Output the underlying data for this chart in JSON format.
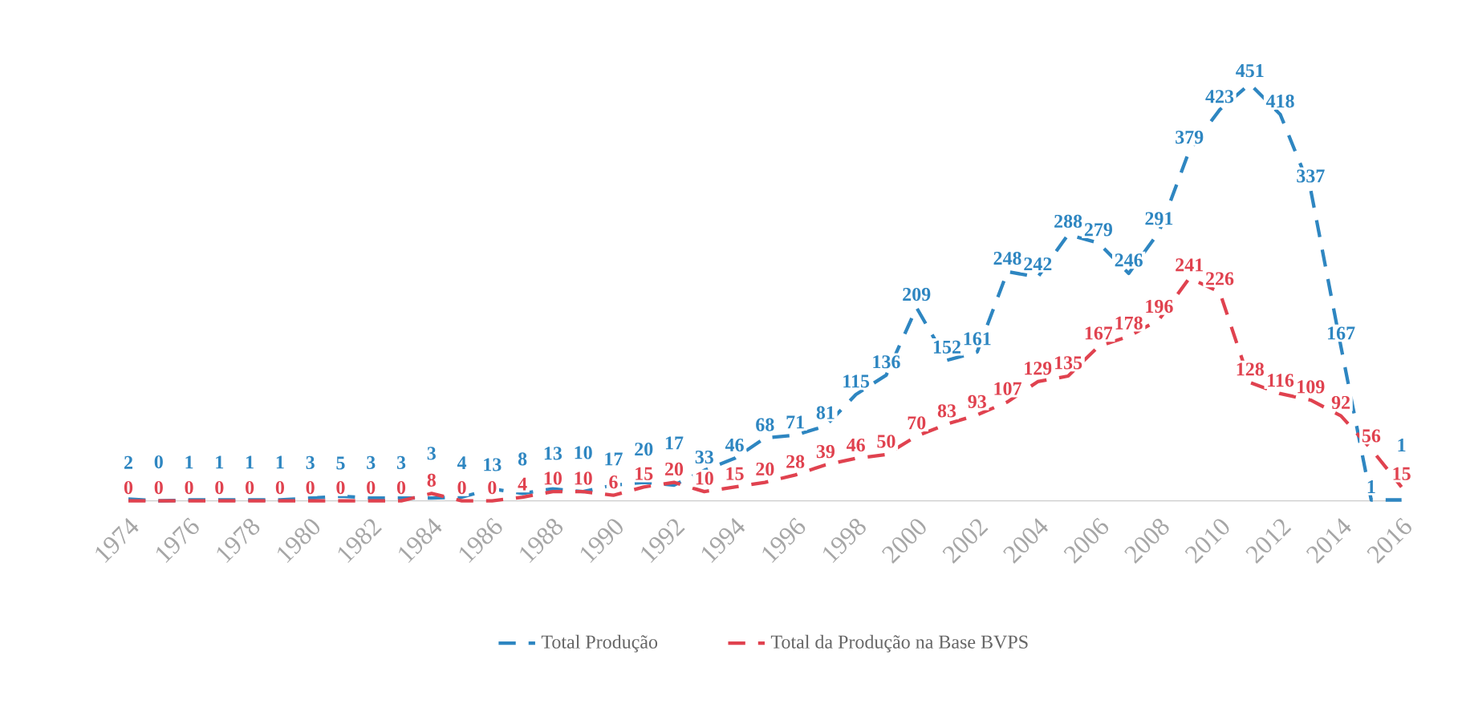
{
  "chart_data": {
    "type": "line",
    "x": [
      1974,
      1975,
      1976,
      1977,
      1978,
      1979,
      1980,
      1981,
      1982,
      1983,
      1984,
      1985,
      1986,
      1987,
      1988,
      1989,
      1990,
      1991,
      1992,
      1993,
      1994,
      1995,
      1996,
      1997,
      1998,
      1999,
      2000,
      2001,
      2002,
      2003,
      2004,
      2005,
      2006,
      2007,
      2008,
      2009,
      2010,
      2011,
      2012,
      2013,
      2014,
      2015,
      2016
    ],
    "series": [
      {
        "name": "Total Produção",
        "color": "#2e86c1",
        "values": [
          2,
          0,
          1,
          1,
          1,
          1,
          3,
          5,
          3,
          3,
          3,
          4,
          13,
          8,
          13,
          10,
          17,
          20,
          17,
          33,
          46,
          68,
          71,
          81,
          115,
          136,
          209,
          152,
          161,
          248,
          242,
          288,
          279,
          246,
          291,
          379,
          423,
          451,
          418,
          337,
          167,
          1,
          1
        ]
      },
      {
        "name": "Total da Produção na Base BVPS",
        "color": "#e0424f",
        "values": [
          0,
          0,
          0,
          0,
          0,
          0,
          0,
          0,
          0,
          0,
          8,
          0,
          0,
          4,
          10,
          10,
          6,
          15,
          20,
          10,
          15,
          20,
          28,
          39,
          46,
          50,
          70,
          83,
          93,
          107,
          129,
          135,
          167,
          178,
          196,
          241,
          226,
          128,
          116,
          109,
          92,
          56,
          15
        ]
      }
    ],
    "xlim": [
      1974,
      2016
    ],
    "xticks": [
      1974,
      1976,
      1978,
      1980,
      1982,
      1984,
      1986,
      1988,
      1990,
      1992,
      1994,
      1996,
      1998,
      2000,
      2002,
      2004,
      2006,
      2008,
      2010,
      2012,
      2014,
      2016
    ],
    "data_labels": true,
    "legend": "bottom",
    "line_style": "dashed",
    "marker": "none",
    "grid": false
  }
}
